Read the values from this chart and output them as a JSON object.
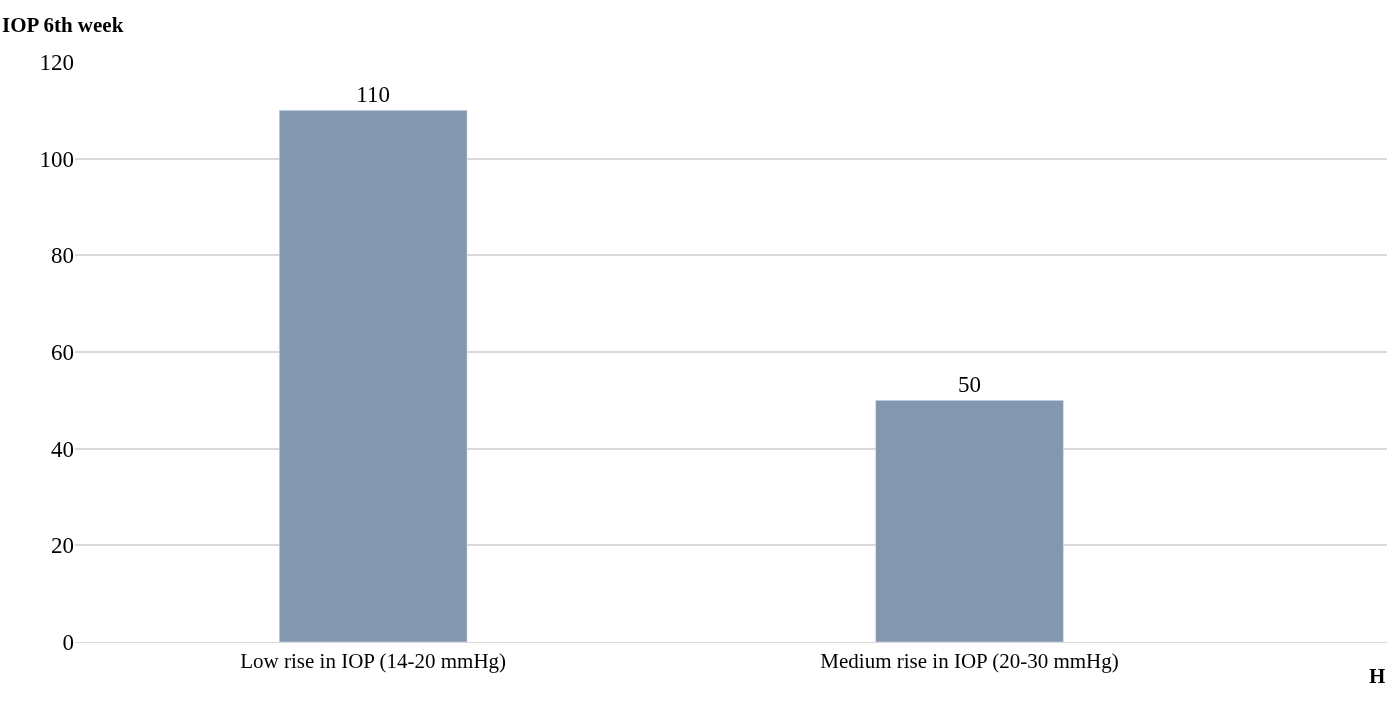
{
  "chart_data": {
    "type": "bar",
    "ylabel": "IOP 6th week",
    "categories": [
      "Low rise in IOP (14-20 mmHg)",
      "Medium rise in IOP (20-30 mmHg)"
    ],
    "values": [
      110,
      50
    ],
    "color": "#8497b0",
    "ylim": [
      0,
      120
    ],
    "yticks": [
      0,
      20,
      40,
      60,
      80,
      100,
      120
    ],
    "grid": "y",
    "data_labels": true,
    "legend": false,
    "annotations": [
      "H"
    ]
  }
}
